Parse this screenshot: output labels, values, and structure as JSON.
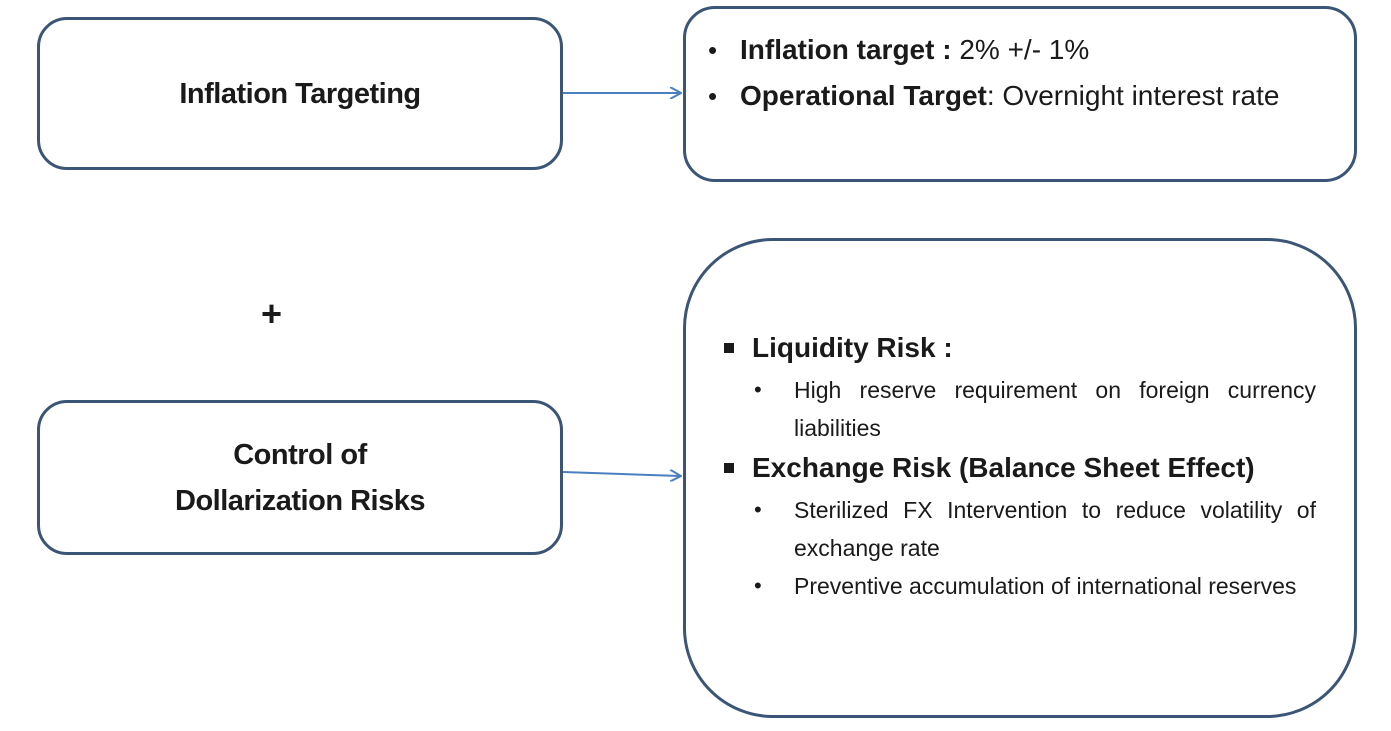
{
  "left_boxes": {
    "inflation_targeting": "Inflation Targeting",
    "control_line1": "Control of",
    "control_line2": "Dollarization Risks"
  },
  "plus_sign": "+",
  "inflation_details": {
    "items": [
      {
        "bold": "Inflation target :",
        "text": " 2% +/- 1%"
      },
      {
        "bold": "Operational Target",
        "text": ": Overnight interest rate"
      }
    ]
  },
  "risk_details": {
    "liquidity": {
      "title": "Liquidity Risk :",
      "points": [
        "High reserve requirement on foreign currency liabilities"
      ]
    },
    "exchange": {
      "title": "Exchange Risk (Balance Sheet Effect)",
      "points": [
        "Sterilized FX Intervention to reduce volatility of exchange rate",
        "Preventive accumulation of international reserves"
      ]
    }
  },
  "bullet_round": "•",
  "colors": {
    "border": "#3b5576",
    "arrow": "#4a7fc0",
    "text": "#1a1a1a"
  }
}
